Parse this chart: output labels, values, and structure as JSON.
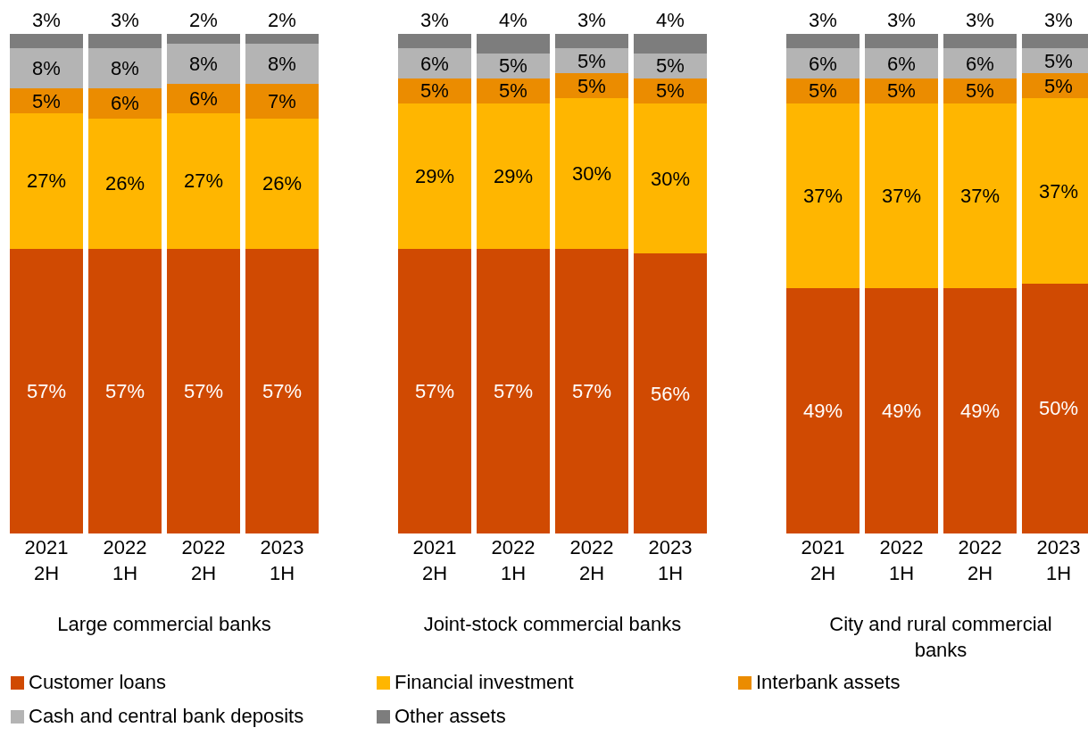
{
  "chart_data": [
    {
      "type": "bar",
      "stacked": true,
      "legend": "bottom",
      "tick_labels": "x",
      "xlabel": "Large commercial banks",
      "categories": [
        "2021 2H",
        "2022 1H",
        "2022 2H",
        "2023 1H"
      ],
      "series": [
        {
          "name": "Customer loans",
          "color": "#d04a02",
          "values": [
            57,
            57,
            57,
            57
          ],
          "value_labels": [
            "57%",
            "57%",
            "57%",
            "57%"
          ]
        },
        {
          "name": "Financial investment",
          "color": "#ffb600",
          "values": [
            27,
            26,
            27,
            26
          ],
          "value_labels": [
            "27%",
            "26%",
            "27%",
            "26%"
          ]
        },
        {
          "name": "Interbank assets",
          "color": "#eb8c00",
          "values": [
            5,
            6,
            6,
            7
          ],
          "value_labels": [
            "5%",
            "6%",
            "6%",
            "7%"
          ]
        },
        {
          "name": "Cash and central bank deposits",
          "color": "#b4b4b4",
          "values": [
            8,
            8,
            8,
            8
          ],
          "value_labels": [
            "8%",
            "8%",
            "8%",
            "8%"
          ]
        },
        {
          "name": "Other assets",
          "color": "#7d7d7d",
          "values": [
            3,
            3,
            2,
            2
          ],
          "value_labels": [
            "3%",
            "3%",
            "2%",
            "2%"
          ]
        }
      ]
    },
    {
      "type": "bar",
      "stacked": true,
      "tick_labels": "x",
      "xlabel": "Joint-stock commercial banks",
      "categories": [
        "2021 2H",
        "2022 1H",
        "2022 2H",
        "2023 1H"
      ],
      "series": [
        {
          "name": "Customer loans",
          "color": "#d04a02",
          "values": [
            57,
            57,
            57,
            56
          ],
          "value_labels": [
            "57%",
            "57%",
            "57%",
            "56%"
          ]
        },
        {
          "name": "Financial investment",
          "color": "#ffb600",
          "values": [
            29,
            29,
            30,
            30
          ],
          "value_labels": [
            "29%",
            "29%",
            "30%",
            "30%"
          ]
        },
        {
          "name": "Interbank assets",
          "color": "#eb8c00",
          "values": [
            5,
            5,
            5,
            5
          ],
          "value_labels": [
            "5%",
            "5%",
            "5%",
            "5%"
          ]
        },
        {
          "name": "Cash and central bank deposits",
          "color": "#b4b4b4",
          "values": [
            6,
            5,
            5,
            5
          ],
          "value_labels": [
            "6%",
            "5%",
            "5%",
            "5%"
          ]
        },
        {
          "name": "Other assets",
          "color": "#7d7d7d",
          "values": [
            3,
            4,
            3,
            4
          ],
          "value_labels": [
            "3%",
            "4%",
            "3%",
            "4%"
          ]
        }
      ]
    },
    {
      "type": "bar",
      "stacked": true,
      "tick_labels": "x",
      "xlabel": "City and rural commercial banks",
      "categories": [
        "2021 2H",
        "2022 1H",
        "2022 2H",
        "2023 1H"
      ],
      "series": [
        {
          "name": "Customer loans",
          "color": "#d04a02",
          "values": [
            49,
            49,
            49,
            50
          ],
          "value_labels": [
            "49%",
            "49%",
            "49%",
            "50%"
          ]
        },
        {
          "name": "Financial investment",
          "color": "#ffb600",
          "values": [
            37,
            37,
            37,
            37
          ],
          "value_labels": [
            "37%",
            "37%",
            "37%",
            "37%"
          ]
        },
        {
          "name": "Interbank assets",
          "color": "#eb8c00",
          "values": [
            5,
            5,
            5,
            5
          ],
          "value_labels": [
            "5%",
            "5%",
            "5%",
            "5%"
          ]
        },
        {
          "name": "Cash and central bank deposits",
          "color": "#b4b4b4",
          "values": [
            6,
            6,
            6,
            5
          ],
          "value_labels": [
            "6%",
            "6%",
            "6%",
            "5%"
          ]
        },
        {
          "name": "Other assets",
          "color": "#7d7d7d",
          "values": [
            3,
            3,
            3,
            3
          ],
          "value_labels": [
            "3%",
            "3%",
            "3%",
            "3%"
          ]
        }
      ]
    }
  ]
}
